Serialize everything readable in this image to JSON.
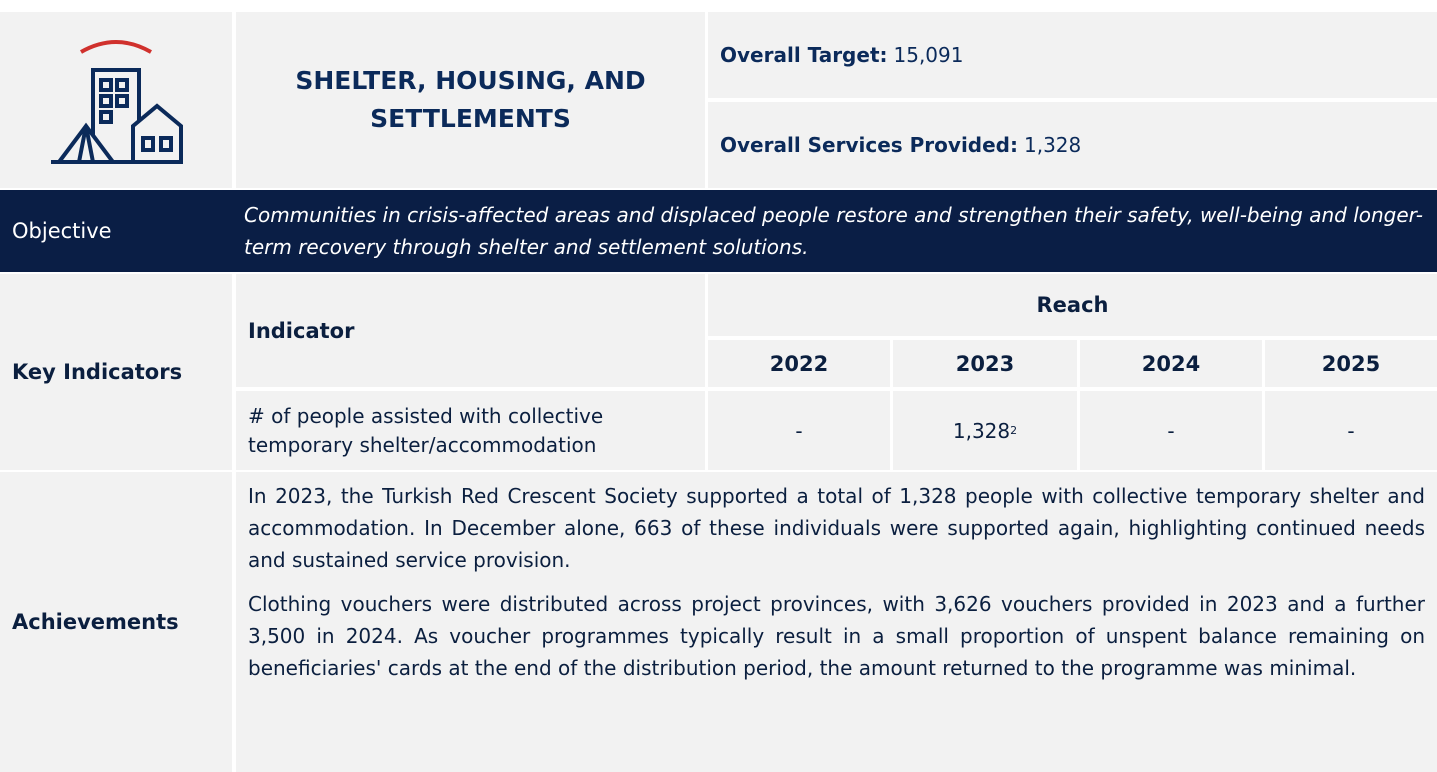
{
  "header": {
    "title": "SHELTER, HOUSING, AND SETTLEMENTS",
    "overall_target": {
      "label": "Overall Target:",
      "value": "15,091"
    },
    "services_provided": {
      "label": "Overall Services Provided:",
      "value": "1,328"
    }
  },
  "objective": {
    "label": "Objective",
    "text": "Communities in crisis-affected areas and displaced people restore and strengthen their safety, well-being and longer-term recovery through shelter and settlement solutions."
  },
  "key_indicators": {
    "label": "Key Indicators",
    "indicator_header": "Indicator",
    "reach_header": "Reach",
    "years": [
      "2022",
      "2023",
      "2024",
      "2025"
    ],
    "rows": [
      {
        "indicator": "# of people assisted with collective temporary shelter/accommodation",
        "values": [
          "-",
          "1,328",
          "-",
          "-"
        ],
        "footnote": "2"
      }
    ]
  },
  "achievements": {
    "label": "Achievements",
    "paragraphs": [
      "In 2023, the Turkish Red Crescent Society supported a total of 1,328 people with collective temporary shelter and accommodation. In December alone, 663 of these individuals were supported again, highlighting continued needs and sustained service provision.",
      "Clothing vouchers were distributed across project provinces, with 3,626 vouchers provided in 2023 and a further 3,500 in 2024. As voucher programmes typically result in a small proportion of unspent balance remaining on beneficiaries' cards at the end of the distribution period, the amount returned to the programme was minimal."
    ]
  }
}
